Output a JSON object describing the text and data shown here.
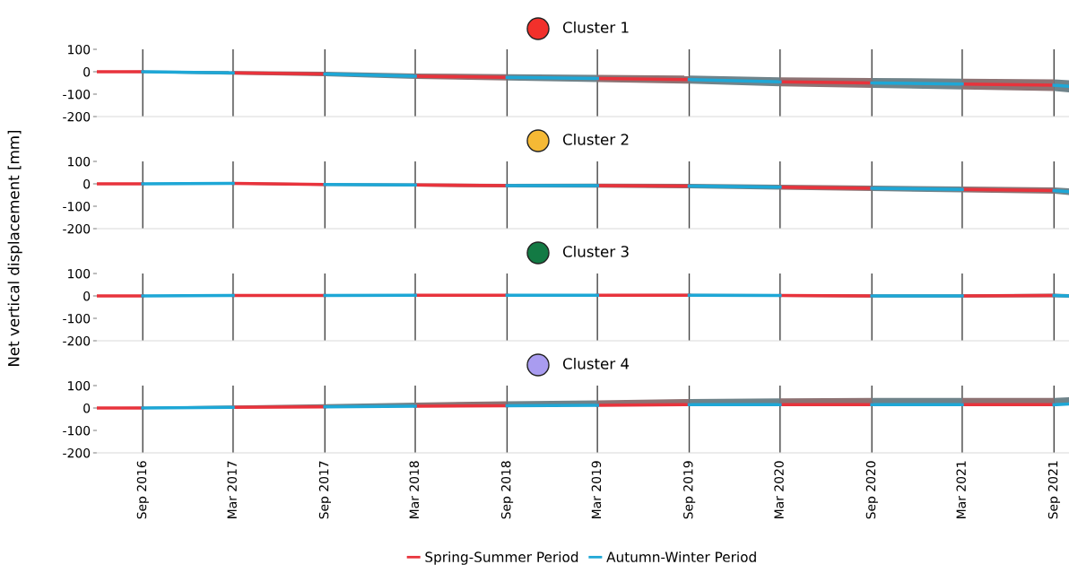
{
  "chart_data": [
    {
      "type": "line",
      "title": "Cluster 1",
      "ylabel": "Net vertical displacement [mm]",
      "xlim": [
        "2016-06-01",
        "2021-10-01"
      ],
      "xticks": [
        {
          "value": "2016-09-01",
          "label": null
        },
        {
          "value": "2017-03-01",
          "label": null
        },
        {
          "value": "2017-09-01",
          "label": null
        },
        {
          "value": "2018-03-01",
          "label": null
        },
        {
          "value": "2018-09-01",
          "label": null
        },
        {
          "value": "2019-03-01",
          "label": null
        },
        {
          "value": "2019-09-01",
          "label": null
        },
        {
          "value": "2020-03-01",
          "label": null
        },
        {
          "value": "2020-09-01",
          "label": null
        },
        {
          "value": "2021-03-01",
          "label": null
        },
        {
          "value": "2021-09-01",
          "label": null
        }
      ],
      "ylim": [
        -200,
        100
      ],
      "yticks": [
        100,
        0,
        -100,
        -200
      ],
      "grid": "x",
      "tick_labels": "y",
      "series": [
        {
          "color": "#e8333c",
          "x": [
            "2016-06",
            "2016-09",
            "2016-12",
            "2017-03",
            "2017-09",
            "2017-12",
            "2018-03",
            "2018-09",
            "2018-12",
            "2019-03",
            "2019-09",
            "2019-12",
            "2020-03",
            "2020-09",
            "2020-12",
            "2021-03",
            "2021-09"
          ],
          "values": [
            0,
            0,
            null,
            -5,
            -10,
            null,
            -20,
            -25,
            null,
            -30,
            -35,
            null,
            -45,
            -50,
            null,
            -55,
            -60
          ],
          "lower": [
            -3,
            -5,
            null,
            -13,
            -20,
            null,
            -32,
            -39,
            null,
            -46,
            -53,
            null,
            -65,
            -72,
            null,
            -79,
            -86
          ],
          "upper": [
            3,
            5,
            null,
            3,
            0,
            null,
            -8,
            -11,
            null,
            -14,
            -17,
            null,
            -25,
            -28,
            null,
            -31,
            -34
          ]
        },
        {
          "color": "#1ea7d6",
          "x": [
            "2016-09",
            "2017-03",
            "2017-06",
            "2017-09",
            "2018-03",
            "2018-06",
            "2018-09",
            "2019-03",
            "2019-06",
            "2019-09",
            "2020-03",
            "2020-06",
            "2020-09",
            "2021-03",
            "2021-06",
            "2021-09",
            "2021-10"
          ],
          "values": [
            0,
            -5,
            null,
            -10,
            -20,
            null,
            -25,
            -30,
            null,
            -35,
            -45,
            null,
            -50,
            -55,
            null,
            -60,
            -65
          ],
          "lower": [
            -5,
            -13,
            null,
            -20,
            -32,
            null,
            -39,
            -46,
            null,
            -53,
            -65,
            null,
            -72,
            -79,
            null,
            -86,
            -92
          ],
          "upper": [
            5,
            3,
            null,
            0,
            -8,
            null,
            -11,
            -14,
            null,
            -17,
            -25,
            null,
            -28,
            -31,
            null,
            -34,
            -38
          ]
        }
      ]
    },
    {
      "type": "line",
      "title": "Cluster 2",
      "xlim": [
        "2016-06-01",
        "2021-10-01"
      ],
      "xticks": [
        {
          "value": "2016-09-01",
          "label": null
        },
        {
          "value": "2017-03-01",
          "label": null
        },
        {
          "value": "2017-09-01",
          "label": null
        },
        {
          "value": "2018-03-01",
          "label": null
        },
        {
          "value": "2018-09-01",
          "label": null
        },
        {
          "value": "2019-03-01",
          "label": null
        },
        {
          "value": "2019-09-01",
          "label": null
        },
        {
          "value": "2020-03-01",
          "label": null
        },
        {
          "value": "2020-09-01",
          "label": null
        },
        {
          "value": "2021-03-01",
          "label": null
        },
        {
          "value": "2021-09-01",
          "label": null
        }
      ],
      "ylim": [
        -200,
        100
      ],
      "yticks": [
        100,
        0,
        -100,
        -200
      ],
      "grid": "x",
      "tick_labels": "y",
      "series": [
        {
          "color": "#e8333c",
          "x": [
            "2016-06",
            "2016-09",
            "2016-12",
            "2017-03",
            "2017-09",
            "2017-12",
            "2018-03",
            "2018-09",
            "2018-12",
            "2019-03",
            "2019-09",
            "2019-12",
            "2020-03",
            "2020-09",
            "2020-12",
            "2021-03",
            "2021-09"
          ],
          "values": [
            0,
            0,
            null,
            2,
            -3,
            null,
            -5,
            -8,
            null,
            -8,
            -10,
            null,
            -15,
            -20,
            null,
            -25,
            -30
          ],
          "lower": [
            -3,
            -4,
            null,
            -3,
            -9,
            null,
            -12,
            -16,
            null,
            -17,
            -20,
            null,
            -26,
            -32,
            null,
            -38,
            -44
          ],
          "upper": [
            3,
            4,
            null,
            7,
            3,
            null,
            2,
            0,
            null,
            1,
            0,
            null,
            -4,
            -8,
            null,
            -12,
            -16
          ]
        },
        {
          "color": "#1ea7d6",
          "x": [
            "2016-09",
            "2017-03",
            "2017-06",
            "2017-09",
            "2018-03",
            "2018-06",
            "2018-09",
            "2019-03",
            "2019-06",
            "2019-09",
            "2020-03",
            "2020-06",
            "2020-09",
            "2021-03",
            "2021-06",
            "2021-09",
            "2021-10"
          ],
          "values": [
            0,
            2,
            null,
            -3,
            -5,
            null,
            -8,
            -8,
            null,
            -10,
            -15,
            null,
            -20,
            -25,
            null,
            -30,
            -35
          ],
          "lower": [
            -4,
            -3,
            null,
            -9,
            -12,
            null,
            -16,
            -17,
            null,
            -20,
            -26,
            null,
            -32,
            -38,
            null,
            -44,
            -50
          ],
          "upper": [
            4,
            7,
            null,
            3,
            2,
            null,
            0,
            1,
            null,
            0,
            -4,
            null,
            -8,
            -12,
            null,
            -16,
            -20
          ]
        }
      ]
    },
    {
      "type": "line",
      "title": "Cluster 3",
      "xlim": [
        "2016-06-01",
        "2021-10-01"
      ],
      "xticks": [
        {
          "value": "2016-09-01",
          "label": null
        },
        {
          "value": "2017-03-01",
          "label": null
        },
        {
          "value": "2017-09-01",
          "label": null
        },
        {
          "value": "2018-03-01",
          "label": null
        },
        {
          "value": "2018-09-01",
          "label": null
        },
        {
          "value": "2019-03-01",
          "label": null
        },
        {
          "value": "2019-09-01",
          "label": null
        },
        {
          "value": "2020-03-01",
          "label": null
        },
        {
          "value": "2020-09-01",
          "label": null
        },
        {
          "value": "2021-03-01",
          "label": null
        },
        {
          "value": "2021-09-01",
          "label": null
        }
      ],
      "ylim": [
        -200,
        100
      ],
      "yticks": [
        100,
        0,
        -100,
        -200
      ],
      "grid": "x",
      "tick_labels": "y",
      "series": [
        {
          "color": "#e8333c",
          "x": [
            "2016-06",
            "2016-09",
            "2016-12",
            "2017-03",
            "2017-09",
            "2017-12",
            "2018-03",
            "2018-09",
            "2018-12",
            "2019-03",
            "2019-09",
            "2019-12",
            "2020-03",
            "2020-09",
            "2020-12",
            "2021-03",
            "2021-09"
          ],
          "values": [
            0,
            0,
            null,
            2,
            2,
            null,
            3,
            3,
            null,
            3,
            3,
            null,
            2,
            0,
            null,
            0,
            2
          ],
          "lower": [
            -2,
            -3,
            null,
            -1,
            -2,
            null,
            -1,
            -2,
            null,
            -2,
            -3,
            null,
            -4,
            -7,
            null,
            -7,
            -6
          ],
          "upper": [
            2,
            3,
            null,
            5,
            6,
            null,
            7,
            8,
            null,
            8,
            9,
            null,
            8,
            7,
            null,
            7,
            10
          ]
        },
        {
          "color": "#1ea7d6",
          "x": [
            "2016-09",
            "2017-03",
            "2017-06",
            "2017-09",
            "2018-03",
            "2018-06",
            "2018-09",
            "2019-03",
            "2019-06",
            "2019-09",
            "2020-03",
            "2020-06",
            "2020-09",
            "2021-03",
            "2021-06",
            "2021-09",
            "2021-10"
          ],
          "values": [
            0,
            2,
            null,
            2,
            3,
            null,
            3,
            3,
            null,
            3,
            2,
            null,
            0,
            0,
            null,
            2,
            0
          ],
          "lower": [
            -3,
            -1,
            null,
            -2,
            -1,
            null,
            -2,
            -2,
            null,
            -3,
            -4,
            null,
            -7,
            -7,
            null,
            -6,
            -8
          ],
          "upper": [
            3,
            5,
            null,
            6,
            7,
            null,
            8,
            8,
            null,
            9,
            8,
            null,
            7,
            7,
            null,
            10,
            8
          ]
        }
      ]
    },
    {
      "type": "line",
      "title": "Cluster 4",
      "xlim": [
        "2016-06-01",
        "2021-10-01"
      ],
      "xticks": [
        {
          "value": "2016-09-01",
          "label": "Sep 2016"
        },
        {
          "value": "2017-03-01",
          "label": "Mar 2017"
        },
        {
          "value": "2017-09-01",
          "label": "Sep 2017"
        },
        {
          "value": "2018-03-01",
          "label": "Mar 2018"
        },
        {
          "value": "2018-09-01",
          "label": "Sep 2018"
        },
        {
          "value": "2019-03-01",
          "label": "Mar 2019"
        },
        {
          "value": "2019-09-01",
          "label": "Sep 2019"
        },
        {
          "value": "2020-03-01",
          "label": "Mar 2020"
        },
        {
          "value": "2020-09-01",
          "label": "Sep 2020"
        },
        {
          "value": "2021-03-01",
          "label": "Mar 2021"
        },
        {
          "value": "2021-09-01",
          "label": "Sep 2021"
        }
      ],
      "ylim": [
        -200,
        100
      ],
      "yticks": [
        100,
        0,
        -100,
        -200
      ],
      "grid": "x",
      "legend": "bottom",
      "series": [
        {
          "name": "Spring-Summer Period",
          "color": "#e8333c",
          "x": [
            "2016-06",
            "2016-09",
            "2016-12",
            "2017-03",
            "2017-09",
            "2017-12",
            "2018-03",
            "2018-09",
            "2018-12",
            "2019-03",
            "2019-09",
            "2019-12",
            "2020-03",
            "2020-09",
            "2020-12",
            "2021-03",
            "2021-09"
          ],
          "values": [
            0,
            0,
            null,
            3,
            5,
            null,
            8,
            10,
            null,
            12,
            15,
            null,
            15,
            15,
            null,
            15,
            15
          ],
          "lower": [
            -3,
            -3,
            null,
            0,
            2,
            null,
            5,
            7,
            null,
            9,
            12,
            null,
            12,
            12,
            null,
            12,
            12
          ],
          "upper": [
            3,
            5,
            null,
            11,
            17,
            null,
            24,
            30,
            null,
            34,
            40,
            null,
            43,
            45,
            null,
            45,
            45
          ]
        },
        {
          "name": "Autumn-Winter Period",
          "color": "#1ea7d6",
          "x": [
            "2016-09",
            "2017-03",
            "2017-06",
            "2017-09",
            "2018-03",
            "2018-06",
            "2018-09",
            "2019-03",
            "2019-06",
            "2019-09",
            "2020-03",
            "2020-06",
            "2020-09",
            "2021-03",
            "2021-06",
            "2021-09",
            "2021-10"
          ],
          "values": [
            0,
            3,
            null,
            5,
            8,
            null,
            10,
            12,
            null,
            15,
            15,
            null,
            15,
            15,
            null,
            15,
            18
          ],
          "lower": [
            -3,
            0,
            null,
            2,
            5,
            null,
            7,
            9,
            null,
            12,
            12,
            null,
            12,
            12,
            null,
            12,
            15
          ],
          "upper": [
            5,
            11,
            null,
            17,
            24,
            null,
            30,
            34,
            null,
            40,
            43,
            null,
            45,
            45,
            null,
            45,
            48
          ]
        }
      ]
    }
  ]
}
